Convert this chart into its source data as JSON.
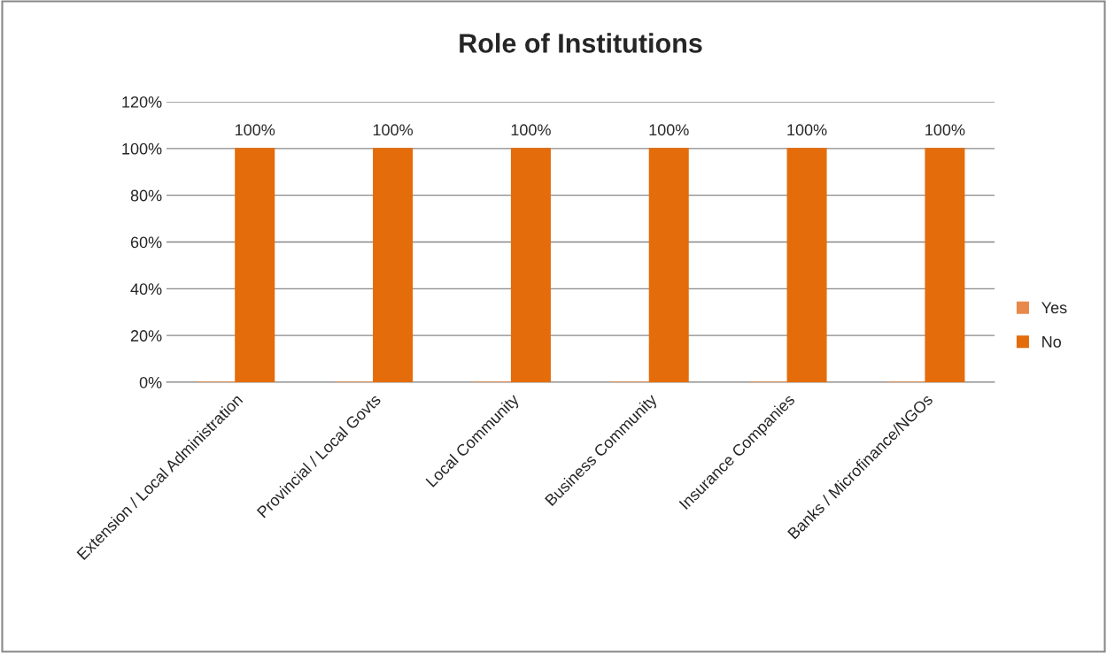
{
  "chart_data": {
    "type": "bar",
    "title": "Role of Institutions",
    "categories": [
      "Extension / Local Administration",
      "Provincial / Local Govts",
      "Local Community",
      "Business Community",
      "Insurance Companies",
      "Banks / Microfinance/NGOs"
    ],
    "series": [
      {
        "name": "Yes",
        "color": "#e8894a",
        "values": [
          0,
          0,
          0,
          0,
          0,
          0
        ],
        "value_labels": [
          null,
          null,
          null,
          null,
          null,
          null
        ]
      },
      {
        "name": "No",
        "color": "#e46c0a",
        "values": [
          100,
          100,
          100,
          100,
          100,
          100
        ],
        "value_labels": [
          "100%",
          "100%",
          "100%",
          "100%",
          "100%",
          "100%"
        ]
      }
    ],
    "ylim": [
      0,
      120
    ],
    "yticks": [
      {
        "value": 0,
        "label": "0%"
      },
      {
        "value": 20,
        "label": "20%"
      },
      {
        "value": 40,
        "label": "40%"
      },
      {
        "value": 60,
        "label": "60%"
      },
      {
        "value": 80,
        "label": "80%"
      },
      {
        "value": 100,
        "label": "100%"
      },
      {
        "value": 120,
        "label": "120%"
      }
    ],
    "grid": "y",
    "legend": "right"
  }
}
